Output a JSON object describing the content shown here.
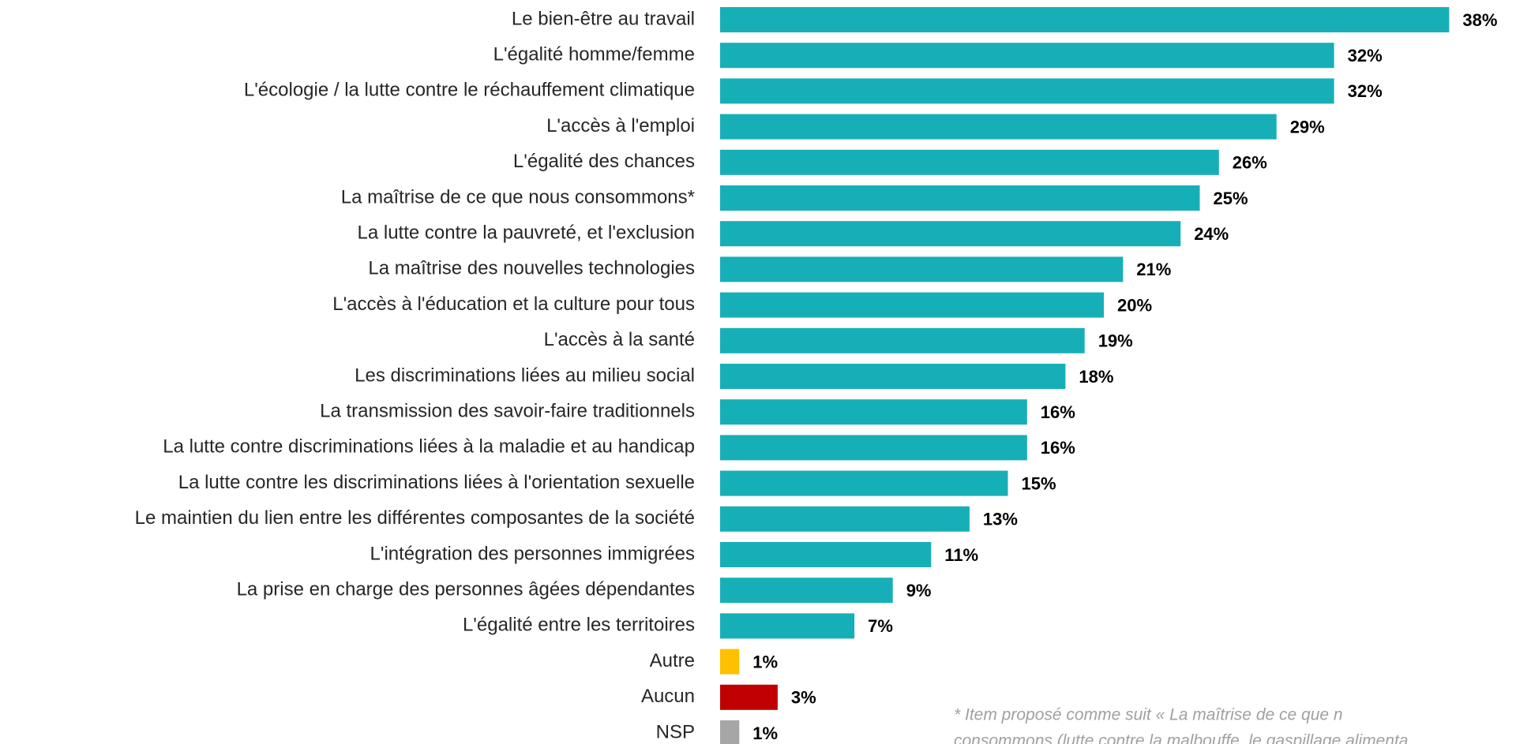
{
  "chart_data": {
    "type": "bar",
    "orientation": "horizontal",
    "categories": [
      "Le bien-être au travail",
      "L'égalité homme/femme",
      "L'écologie / la lutte contre le réchauffement climatique",
      "L'accès à l'emploi",
      "L'égalité des chances",
      "La maîtrise de ce que nous consommons*",
      "La lutte contre la pauvreté, et l'exclusion",
      "La maîtrise des nouvelles technologies",
      "L'accès à l'éducation et la culture pour tous",
      "L'accès à la santé",
      "Les discriminations liées au milieu social",
      "La transmission des savoir-faire traditionnels",
      "La lutte contre discriminations liées à la maladie et au handicap",
      "La lutte contre les discriminations liées à l'orientation sexuelle",
      "Le maintien du lien entre les différentes composantes de la société",
      "L'intégration des personnes immigrées",
      "La prise en charge des personnes âgées dépendantes",
      "L'égalité entre les territoires",
      "Autre",
      "Aucun",
      "NSP"
    ],
    "values": [
      38,
      32,
      32,
      29,
      26,
      25,
      24,
      21,
      20,
      19,
      18,
      16,
      16,
      15,
      13,
      11,
      9,
      7,
      1,
      3,
      1
    ],
    "value_labels": [
      "38%",
      "32%",
      "32%",
      "29%",
      "26%",
      "25%",
      "24%",
      "21%",
      "20%",
      "19%",
      "18%",
      "16%",
      "16%",
      "15%",
      "13%",
      "11%",
      "9%",
      "7%",
      "1%",
      "3%",
      "1%"
    ],
    "colors": [
      "#17AFB7",
      "#17AFB7",
      "#17AFB7",
      "#17AFB7",
      "#17AFB7",
      "#17AFB7",
      "#17AFB7",
      "#17AFB7",
      "#17AFB7",
      "#17AFB7",
      "#17AFB7",
      "#17AFB7",
      "#17AFB7",
      "#17AFB7",
      "#17AFB7",
      "#17AFB7",
      "#17AFB7",
      "#17AFB7",
      "#FFC000",
      "#C00000",
      "#A6A6A6"
    ],
    "footnote": [
      "* Item proposé comme suit « La maîtrise de ce que n",
      "consommons (lutte contre la malbouffe, le gaspillage alimenta"
    ]
  }
}
